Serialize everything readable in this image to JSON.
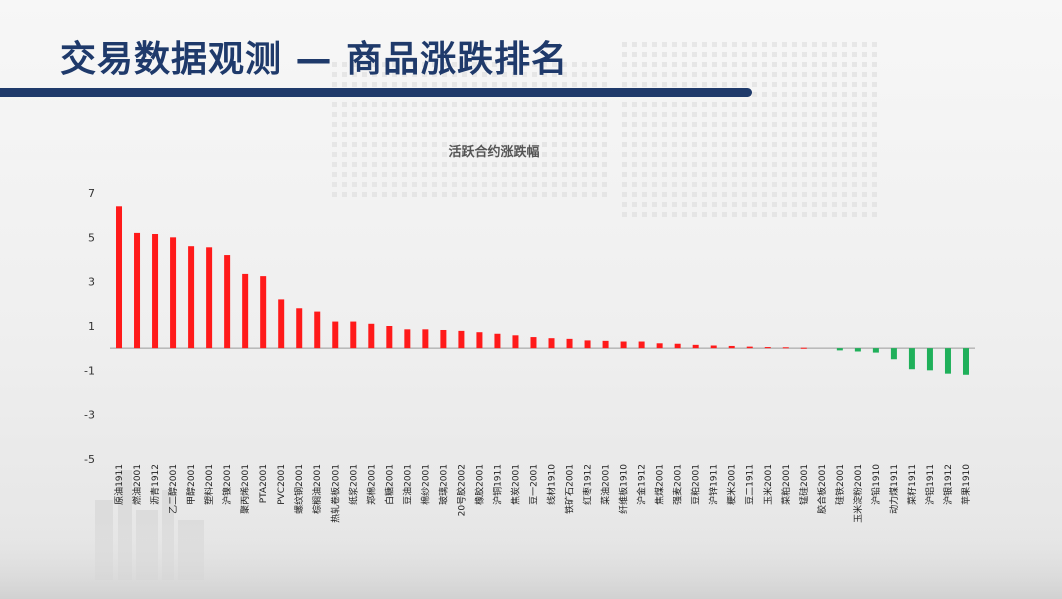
{
  "slide": {
    "title": "交易数据观测 — 商品涨跌排名"
  },
  "colors": {
    "positive": "#ff1a1a",
    "negative": "#1fb05a",
    "title": "#1f3a6b"
  },
  "chart_data": {
    "type": "bar",
    "title": "活跃合约涨跌幅",
    "ylim": [
      -5,
      7
    ],
    "yticks": [
      -5,
      -3,
      -1,
      1,
      3,
      5,
      7
    ],
    "grid": false,
    "categories": [
      "原油1911",
      "燃油2001",
      "沥青1912",
      "乙二醇2001",
      "甲醇2001",
      "塑料2001",
      "沪镍2001",
      "聚丙烯2001",
      "PTA2001",
      "PVC2001",
      "螺纹钢2001",
      "棕榈油2001",
      "热轧卷板2001",
      "纸浆2001",
      "郑棉2001",
      "白糖2001",
      "豆油2001",
      "棉纱2001",
      "玻璃2001",
      "20号胶2002",
      "橡胶2001",
      "沪铜1911",
      "焦炭2001",
      "豆一2001",
      "线材1910",
      "铁矿石2001",
      "红枣1912",
      "菜油2001",
      "纤维板1910",
      "沪金1912",
      "焦煤2001",
      "强麦2001",
      "豆粕2001",
      "沪锌1911",
      "粳米2001",
      "豆二1911",
      "玉米2001",
      "菜粕2001",
      "锰硅2001",
      "胶合板2001",
      "硅铁2001",
      "玉米淀粉2001",
      "沪铅1910",
      "动力煤1911",
      "菜籽1911",
      "沪铝1911",
      "沪银1912",
      "苹果1910"
    ],
    "values": [
      6.4,
      5.2,
      5.15,
      5.0,
      4.6,
      4.55,
      4.2,
      3.35,
      3.25,
      2.2,
      1.8,
      1.65,
      1.2,
      1.2,
      1.1,
      1.0,
      0.85,
      0.85,
      0.82,
      0.78,
      0.72,
      0.65,
      0.58,
      0.5,
      0.45,
      0.42,
      0.35,
      0.33,
      0.3,
      0.3,
      0.22,
      0.2,
      0.15,
      0.12,
      0.1,
      0.07,
      0.05,
      0.04,
      0.02,
      0.0,
      -0.1,
      -0.15,
      -0.2,
      -0.5,
      -0.95,
      -1.0,
      -1.15,
      -1.2
    ]
  }
}
